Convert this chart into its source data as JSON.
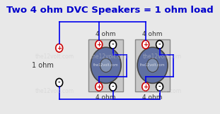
{
  "title": "Two 4 ohm DVC Speakers = 1 ohm load",
  "title_color": "#0000cc",
  "title_fontsize": 9.5,
  "bg_color": "#e8e8e8",
  "wire_color": "#0000ee",
  "plus_color": "#cc0000",
  "minus_color": "#000000",
  "speaker_fill": "#6070a0",
  "speaker_outline": "#444444",
  "box_fill": "#c8c8c8",
  "box_outline": "#888888",
  "label_color": "#333333",
  "watermark_color": "#cccccc",
  "ohm_label": "4 ohm",
  "side_label": "1 ohm",
  "watermark": "the12volt.com"
}
